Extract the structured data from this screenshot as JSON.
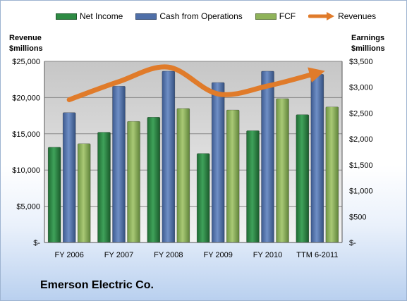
{
  "chart_data": {
    "type": "bar",
    "title": "Emerson Electric Co.",
    "categories": [
      "FY 2006",
      "FY 2007",
      "FY 2008",
      "FY 2009",
      "FY 2010",
      "TTM 6-2011"
    ],
    "series": [
      {
        "name": "Net Income",
        "axis": "right",
        "color": "#2e8b44",
        "values": [
          1840,
          2130,
          2420,
          1720,
          2160,
          2470
        ]
      },
      {
        "name": "Cash from Operations",
        "axis": "right",
        "color": "#4f6fa8",
        "values": [
          2510,
          3020,
          3310,
          3090,
          3310,
          3250
        ]
      },
      {
        "name": "FCF",
        "axis": "right",
        "color": "#8fb35a",
        "values": [
          1910,
          2340,
          2590,
          2560,
          2780,
          2620
        ]
      }
    ],
    "line_series": {
      "name": "Revenues",
      "axis": "left",
      "color": "#e07b2a",
      "values": [
        19700,
        22200,
        24200,
        20500,
        21600,
        23400
      ]
    },
    "left_axis": {
      "label_line1": "Revenue",
      "label_line2": "$millions",
      "ylim": [
        0,
        25000
      ],
      "ticks": [
        "$-",
        "$5,000",
        "$10,000",
        "$15,000",
        "$20,000",
        "$25,000"
      ]
    },
    "right_axis": {
      "label_line1": "Earnings",
      "label_line2": "$millions",
      "ylim": [
        0,
        3500
      ],
      "ticks": [
        "$-",
        "$500",
        "$1,000",
        "$1,500",
        "$2,000",
        "$2,500",
        "$3,000",
        "$3,500"
      ]
    },
    "grid": true,
    "legend_position": "top"
  },
  "colors": {
    "plot_bg_top": "#c8c8c8",
    "plot_bg_bottom": "#f2f2f2",
    "gridline": "#888888"
  }
}
